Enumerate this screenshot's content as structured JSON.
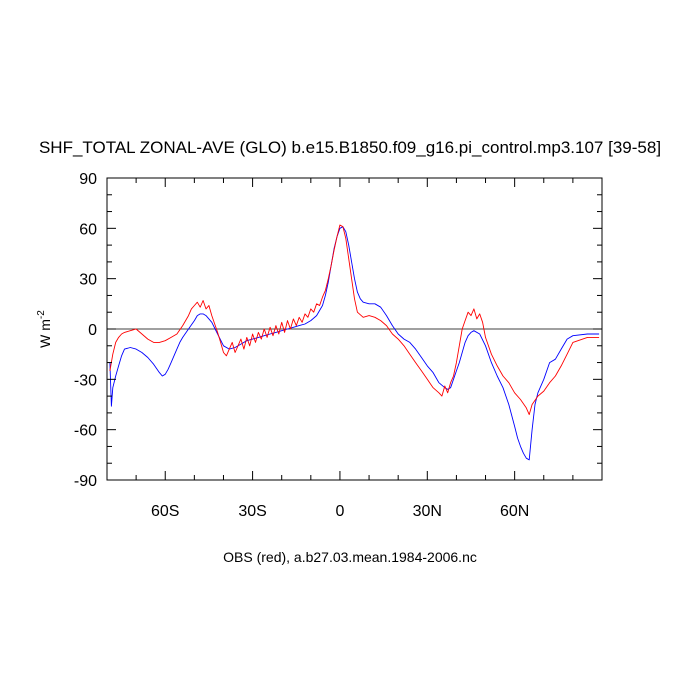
{
  "chart_data": {
    "type": "line",
    "title": "SHF_TOTAL ZONAL-AVE (GLO) b.e15.B1850.f09_g16.pi_control.mp3.107 [39-58]",
    "xlabel": "OBS (red), a.b27.03.mean.1984-2006.nc",
    "ylabel": "W m",
    "ylabel_exponent": "-2",
    "xlim": [
      -80,
      90
    ],
    "ylim": [
      -90,
      90
    ],
    "x_ticks": [
      -60,
      -30,
      0,
      30,
      60
    ],
    "x_tick_labels": [
      "60S",
      "30S",
      "0",
      "30N",
      "60N"
    ],
    "y_ticks": [
      -90,
      -60,
      -30,
      0,
      30,
      60,
      90
    ],
    "y_tick_labels": [
      "-90",
      "-60",
      "-30",
      "0",
      "30",
      "60",
      "90"
    ],
    "grid": false,
    "reference_line": 0,
    "series": [
      {
        "color": "#0000ff",
        "x": [
          -79,
          -78.5,
          -78,
          -77,
          -76,
          -75,
          -74,
          -72,
          -70,
          -68,
          -66,
          -64,
          -62,
          -61,
          -60,
          -59,
          -58,
          -57,
          -56,
          -55,
          -54,
          -52,
          -50,
          -49,
          -48,
          -47,
          -46,
          -44,
          -42,
          -40,
          -38,
          -36,
          -34,
          -32,
          -30,
          -28,
          -26,
          -24,
          -22,
          -20,
          -18,
          -16,
          -14,
          -12,
          -10,
          -8,
          -6,
          -5,
          -4,
          -3,
          -2,
          -1,
          0,
          1,
          2,
          3,
          4,
          5,
          6,
          7,
          8,
          10,
          12,
          14,
          16,
          18,
          20,
          22,
          24,
          26,
          28,
          30,
          32,
          34,
          36,
          37,
          38,
          39,
          40,
          41,
          42,
          43,
          44,
          45,
          46,
          48,
          50,
          52,
          54,
          56,
          58,
          60,
          61,
          62,
          63,
          64,
          65,
          66,
          67,
          68,
          70,
          72,
          74,
          76,
          78,
          80,
          85,
          89
        ],
        "y": [
          -20,
          -46,
          -35,
          -28,
          -22,
          -16,
          -12,
          -11,
          -12,
          -14,
          -17,
          -21,
          -26,
          -28,
          -27,
          -24,
          -20,
          -16,
          -12,
          -8,
          -5,
          0,
          5,
          8,
          9,
          9,
          8,
          4,
          -3,
          -10,
          -12,
          -11,
          -9,
          -7,
          -6,
          -5,
          -4,
          -3,
          -2,
          -1,
          0,
          1,
          2,
          3,
          5,
          8,
          14,
          20,
          28,
          38,
          48,
          55,
          60,
          61,
          58,
          50,
          40,
          30,
          22,
          18,
          16,
          15,
          15,
          13,
          8,
          2,
          -3,
          -6,
          -8,
          -12,
          -17,
          -22,
          -26,
          -32,
          -35,
          -36,
          -35,
          -30,
          -25,
          -20,
          -14,
          -8,
          -4,
          -2,
          -1,
          -3,
          -10,
          -20,
          -28,
          -35,
          -45,
          -58,
          -65,
          -70,
          -74,
          -77,
          -78,
          -60,
          -45,
          -38,
          -30,
          -20,
          -18,
          -12,
          -6,
          -4,
          -3,
          -3
        ]
      },
      {
        "color": "#ff0000",
        "x": [
          -79,
          -78,
          -77,
          -76,
          -75,
          -74,
          -72,
          -70,
          -68,
          -66,
          -64,
          -62,
          -60,
          -58,
          -56,
          -54,
          -52,
          -51,
          -50,
          -49,
          -48,
          -47,
          -46,
          -45,
          -44,
          -42,
          -41,
          -40,
          -39,
          -38,
          -37,
          -36,
          -35,
          -34,
          -33,
          -32,
          -31,
          -30,
          -29,
          -28,
          -27,
          -26,
          -25,
          -24,
          -23,
          -22,
          -21,
          -20,
          -19,
          -18,
          -17,
          -16,
          -15,
          -14,
          -13,
          -12,
          -11,
          -10,
          -9,
          -8,
          -7,
          -6,
          -5,
          -4,
          -3,
          -2,
          -1,
          0,
          1,
          2,
          3,
          4,
          5,
          6,
          8,
          10,
          12,
          14,
          16,
          18,
          20,
          22,
          24,
          26,
          28,
          30,
          32,
          34,
          35,
          36,
          37,
          38,
          39,
          40,
          41,
          42,
          43,
          44,
          45,
          46,
          47,
          48,
          49,
          50,
          52,
          54,
          56,
          58,
          60,
          62,
          64,
          65,
          66,
          68,
          70,
          72,
          74,
          76,
          78,
          80,
          85,
          89
        ],
        "y": [
          -25,
          -15,
          -8,
          -5,
          -3,
          -2,
          -1,
          0,
          -3,
          -6,
          -8,
          -8,
          -7,
          -5,
          -3,
          2,
          8,
          12,
          14,
          16,
          13,
          17,
          12,
          14,
          8,
          -2,
          -8,
          -14,
          -16,
          -12,
          -8,
          -14,
          -10,
          -6,
          -12,
          -5,
          -10,
          -3,
          -8,
          -2,
          -6,
          0,
          -5,
          1,
          -4,
          2,
          -3,
          4,
          -2,
          5,
          0,
          6,
          2,
          7,
          4,
          9,
          7,
          12,
          10,
          15,
          14,
          19,
          23,
          30,
          38,
          47,
          55,
          62,
          61,
          54,
          42,
          30,
          18,
          10,
          7,
          8,
          7,
          5,
          2,
          -3,
          -6,
          -10,
          -15,
          -20,
          -25,
          -30,
          -35,
          -38,
          -40,
          -34,
          -38,
          -32,
          -28,
          -20,
          -10,
          0,
          5,
          10,
          8,
          12,
          6,
          9,
          4,
          -5,
          -15,
          -22,
          -28,
          -32,
          -38,
          -42,
          -47,
          -51,
          -45,
          -40,
          -37,
          -32,
          -28,
          -22,
          -15,
          -8,
          -5,
          -5
        ]
      }
    ]
  }
}
